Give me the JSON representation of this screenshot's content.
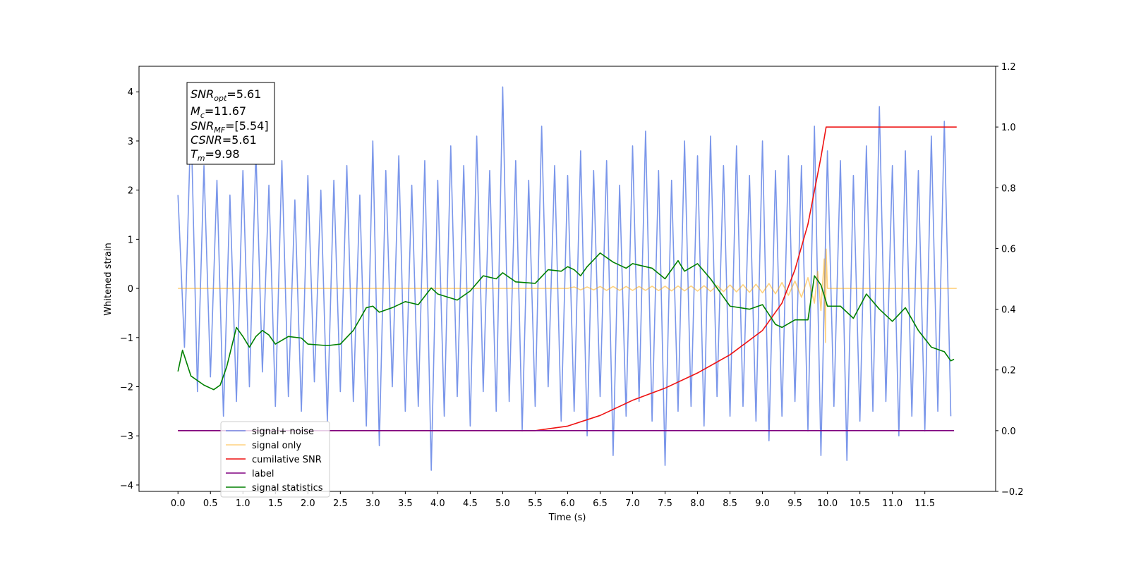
{
  "chart_data": {
    "type": "line",
    "xlabel": "Time (s)",
    "ylabel": "Whitened strain",
    "xlim": [
      -0.6,
      12.59
    ],
    "ylim": [
      -4.13,
      4.52
    ],
    "y2lim": [
      -0.2,
      1.2
    ],
    "xticks": [
      {
        "value": 0,
        "label": "0.0"
      },
      0.5,
      {
        "value": 1,
        "label": "1.0"
      },
      1.5,
      {
        "value": 2,
        "label": "2.0"
      },
      2.5,
      {
        "value": 3,
        "label": "3.0"
      },
      3.5,
      {
        "value": 4,
        "label": "4.0"
      },
      4.5,
      {
        "value": 5,
        "label": "5.0"
      },
      5.5,
      {
        "value": 6,
        "label": "6.0"
      },
      6.5,
      {
        "value": 7,
        "label": "7.0"
      },
      7.5,
      {
        "value": 8,
        "label": "8.0"
      },
      8.5,
      {
        "value": 9,
        "label": "9.0"
      },
      9.5,
      {
        "value": 10,
        "label": "10.0"
      },
      10.5,
      {
        "value": 11,
        "label": "11.0"
      },
      11.5
    ],
    "yticks": [
      {
        "value": -4,
        "label": "−4"
      },
      {
        "value": -3,
        "label": "−3"
      },
      {
        "value": -2,
        "label": "−2"
      },
      {
        "value": -1,
        "label": "−1"
      },
      0,
      1,
      2,
      3,
      4
    ],
    "y2ticks": [
      {
        "value": -0.2,
        "label": "−0.2"
      },
      {
        "value": 0,
        "label": "0.0"
      },
      0.2,
      0.4,
      0.6,
      0.8,
      {
        "value": 1,
        "label": "1.0"
      },
      1.2
    ],
    "annotation": [
      {
        "symbol": "SNR",
        "subscript": "opt",
        "text": "=5.61"
      },
      {
        "symbol": "M",
        "subscript": "c",
        "text": "=11.67"
      },
      {
        "symbol": "SNR",
        "subscript": "MF",
        "text": "=[5.54]"
      },
      {
        "symbol": "CSNR",
        "text": "=5.61"
      },
      {
        "symbol": "T",
        "subscript": "m",
        "text": "=9.98"
      }
    ],
    "series": [
      {
        "name": "signal+ noise",
        "color": "#4169e1",
        "alpha": 0.7,
        "axis": "y",
        "x": [
          0.0,
          0.1,
          0.2,
          0.3,
          0.4,
          0.5,
          0.6,
          0.7,
          0.8,
          0.9,
          1.0,
          1.1,
          1.2,
          1.3,
          1.4,
          1.5,
          1.6,
          1.7,
          1.8,
          1.9,
          2.0,
          2.1,
          2.2,
          2.3,
          2.4,
          2.5,
          2.6,
          2.7,
          2.8,
          2.9,
          3.0,
          3.1,
          3.2,
          3.3,
          3.4,
          3.5,
          3.6,
          3.7,
          3.8,
          3.9,
          4.0,
          4.1,
          4.2,
          4.3,
          4.4,
          4.5,
          4.6,
          4.7,
          4.8,
          4.9,
          5.0,
          5.1,
          5.2,
          5.3,
          5.4,
          5.5,
          5.6,
          5.7,
          5.8,
          5.9,
          6.0,
          6.1,
          6.2,
          6.3,
          6.4,
          6.5,
          6.6,
          6.7,
          6.8,
          6.9,
          7.0,
          7.1,
          7.2,
          7.3,
          7.4,
          7.5,
          7.6,
          7.7,
          7.8,
          7.9,
          8.0,
          8.1,
          8.2,
          8.3,
          8.4,
          8.5,
          8.6,
          8.7,
          8.8,
          8.9,
          9.0,
          9.1,
          9.2,
          9.3,
          9.4,
          9.5,
          9.6,
          9.7,
          9.8,
          9.9,
          10.0,
          10.1,
          10.2,
          10.3,
          10.4,
          10.5,
          10.6,
          10.7,
          10.8,
          10.9,
          11.0,
          11.1,
          11.2,
          11.3,
          11.4,
          11.5,
          11.6,
          11.7,
          11.8,
          11.9
        ],
        "values": [
          1.9,
          -1.2,
          3.5,
          -2.1,
          2.5,
          -1.8,
          2.2,
          -2.6,
          1.9,
          -2.3,
          2.4,
          -2.0,
          2.8,
          -1.7,
          2.1,
          -2.4,
          2.6,
          -2.2,
          1.8,
          -2.5,
          2.3,
          -1.9,
          2.0,
          -2.7,
          2.2,
          -2.1,
          2.5,
          -2.3,
          1.9,
          -2.8,
          3.0,
          -3.2,
          2.4,
          -2.0,
          2.7,
          -2.5,
          2.1,
          -2.4,
          2.6,
          -3.7,
          2.2,
          -2.6,
          2.9,
          -2.2,
          2.5,
          -2.8,
          3.1,
          -2.1,
          2.4,
          -2.5,
          4.1,
          -2.3,
          2.6,
          -2.9,
          2.2,
          -2.4,
          3.3,
          -2.0,
          2.5,
          -2.7,
          2.3,
          -2.5,
          2.8,
          -3.0,
          2.4,
          -2.2,
          2.6,
          -3.4,
          2.1,
          -2.6,
          2.9,
          -2.3,
          3.2,
          -2.7,
          2.4,
          -3.6,
          2.2,
          -2.5,
          3.0,
          -2.4,
          2.7,
          -2.8,
          3.1,
          -2.2,
          2.5,
          -2.6,
          2.9,
          -2.4,
          2.3,
          -2.7,
          3.0,
          -3.1,
          2.4,
          -2.6,
          2.7,
          -2.3,
          2.5,
          -2.9,
          3.3,
          -3.4,
          2.8,
          -2.4,
          2.6,
          -3.5,
          2.3,
          -2.7,
          2.9,
          -2.5,
          3.7,
          -2.3,
          2.5,
          -3.0,
          2.8,
          -2.6,
          2.4,
          -2.9,
          3.1,
          -2.5,
          3.4,
          -2.6
        ]
      },
      {
        "name": "signal only",
        "color": "#ffa500",
        "alpha": 0.5,
        "axis": "y",
        "x": [
          0.0,
          6.0,
          6.1,
          6.2,
          6.3,
          6.4,
          6.5,
          6.6,
          6.7,
          6.8,
          6.9,
          7.0,
          7.1,
          7.2,
          7.3,
          7.4,
          7.5,
          7.6,
          7.7,
          7.8,
          7.9,
          8.0,
          8.1,
          8.2,
          8.3,
          8.4,
          8.5,
          8.6,
          8.7,
          8.8,
          8.9,
          9.0,
          9.1,
          9.2,
          9.3,
          9.4,
          9.5,
          9.6,
          9.7,
          9.8,
          9.85,
          9.9,
          9.95,
          9.97,
          9.98,
          10.0,
          11.99
        ],
        "values": [
          0,
          0,
          0.03,
          -0.03,
          0.03,
          -0.03,
          0.04,
          -0.04,
          0.04,
          -0.04,
          0.04,
          -0.04,
          0.04,
          -0.04,
          0.045,
          -0.045,
          0.045,
          -0.05,
          0.05,
          -0.05,
          0.05,
          -0.055,
          0.055,
          -0.06,
          0.06,
          -0.065,
          0.07,
          -0.07,
          0.075,
          -0.08,
          0.085,
          -0.09,
          0.1,
          -0.11,
          0.12,
          -0.14,
          0.15,
          -0.18,
          0.22,
          -0.3,
          0.35,
          -0.45,
          0.6,
          -1.1,
          0.8,
          0,
          0
        ]
      },
      {
        "name": "cumilative SNR",
        "color": "#ee1111",
        "alpha": 1,
        "axis": "y2",
        "x": [
          0.0,
          5.5,
          6.0,
          6.5,
          7.0,
          7.5,
          8.0,
          8.5,
          9.0,
          9.3,
          9.5,
          9.7,
          9.8,
          9.9,
          9.98,
          11.99
        ],
        "values": [
          0,
          0,
          0.015,
          0.05,
          0.1,
          0.14,
          0.19,
          0.25,
          0.33,
          0.42,
          0.53,
          0.68,
          0.79,
          0.9,
          1.0,
          1.0
        ]
      },
      {
        "name": "label",
        "color": "#800080",
        "alpha": 1,
        "axis": "y2",
        "x": [
          0.0,
          11.95
        ],
        "values": [
          0,
          0
        ]
      },
      {
        "name": "signal statistics",
        "color": "#008000",
        "alpha": 1,
        "axis": "y2",
        "x": [
          0.0,
          0.07,
          0.2,
          0.4,
          0.55,
          0.65,
          0.75,
          0.9,
          1.0,
          1.1,
          1.2,
          1.3,
          1.4,
          1.5,
          1.7,
          1.9,
          2.0,
          2.3,
          2.5,
          2.7,
          2.9,
          3.0,
          3.1,
          3.3,
          3.5,
          3.7,
          3.9,
          4.0,
          4.3,
          4.5,
          4.7,
          4.9,
          5.0,
          5.2,
          5.5,
          5.7,
          5.9,
          6.0,
          6.1,
          6.2,
          6.3,
          6.5,
          6.7,
          6.9,
          7.0,
          7.3,
          7.5,
          7.7,
          7.8,
          8.0,
          8.2,
          8.5,
          8.8,
          9.0,
          9.2,
          9.3,
          9.5,
          9.7,
          9.8,
          9.9,
          10.0,
          10.2,
          10.4,
          10.6,
          10.8,
          11.0,
          11.2,
          11.4,
          11.6,
          11.8,
          11.9,
          11.95
        ],
        "values": [
          0.195,
          0.265,
          0.18,
          0.15,
          0.135,
          0.15,
          0.21,
          0.34,
          0.31,
          0.275,
          0.31,
          0.33,
          0.315,
          0.285,
          0.31,
          0.305,
          0.285,
          0.28,
          0.285,
          0.33,
          0.405,
          0.41,
          0.39,
          0.405,
          0.425,
          0.415,
          0.47,
          0.45,
          0.43,
          0.46,
          0.51,
          0.5,
          0.52,
          0.49,
          0.485,
          0.53,
          0.525,
          0.54,
          0.53,
          0.51,
          0.54,
          0.585,
          0.555,
          0.535,
          0.55,
          0.535,
          0.5,
          0.56,
          0.525,
          0.55,
          0.5,
          0.41,
          0.4,
          0.415,
          0.35,
          0.34,
          0.365,
          0.365,
          0.51,
          0.48,
          0.41,
          0.41,
          0.37,
          0.45,
          0.4,
          0.36,
          0.405,
          0.33,
          0.275,
          0.26,
          0.23,
          0.235
        ]
      }
    ]
  }
}
